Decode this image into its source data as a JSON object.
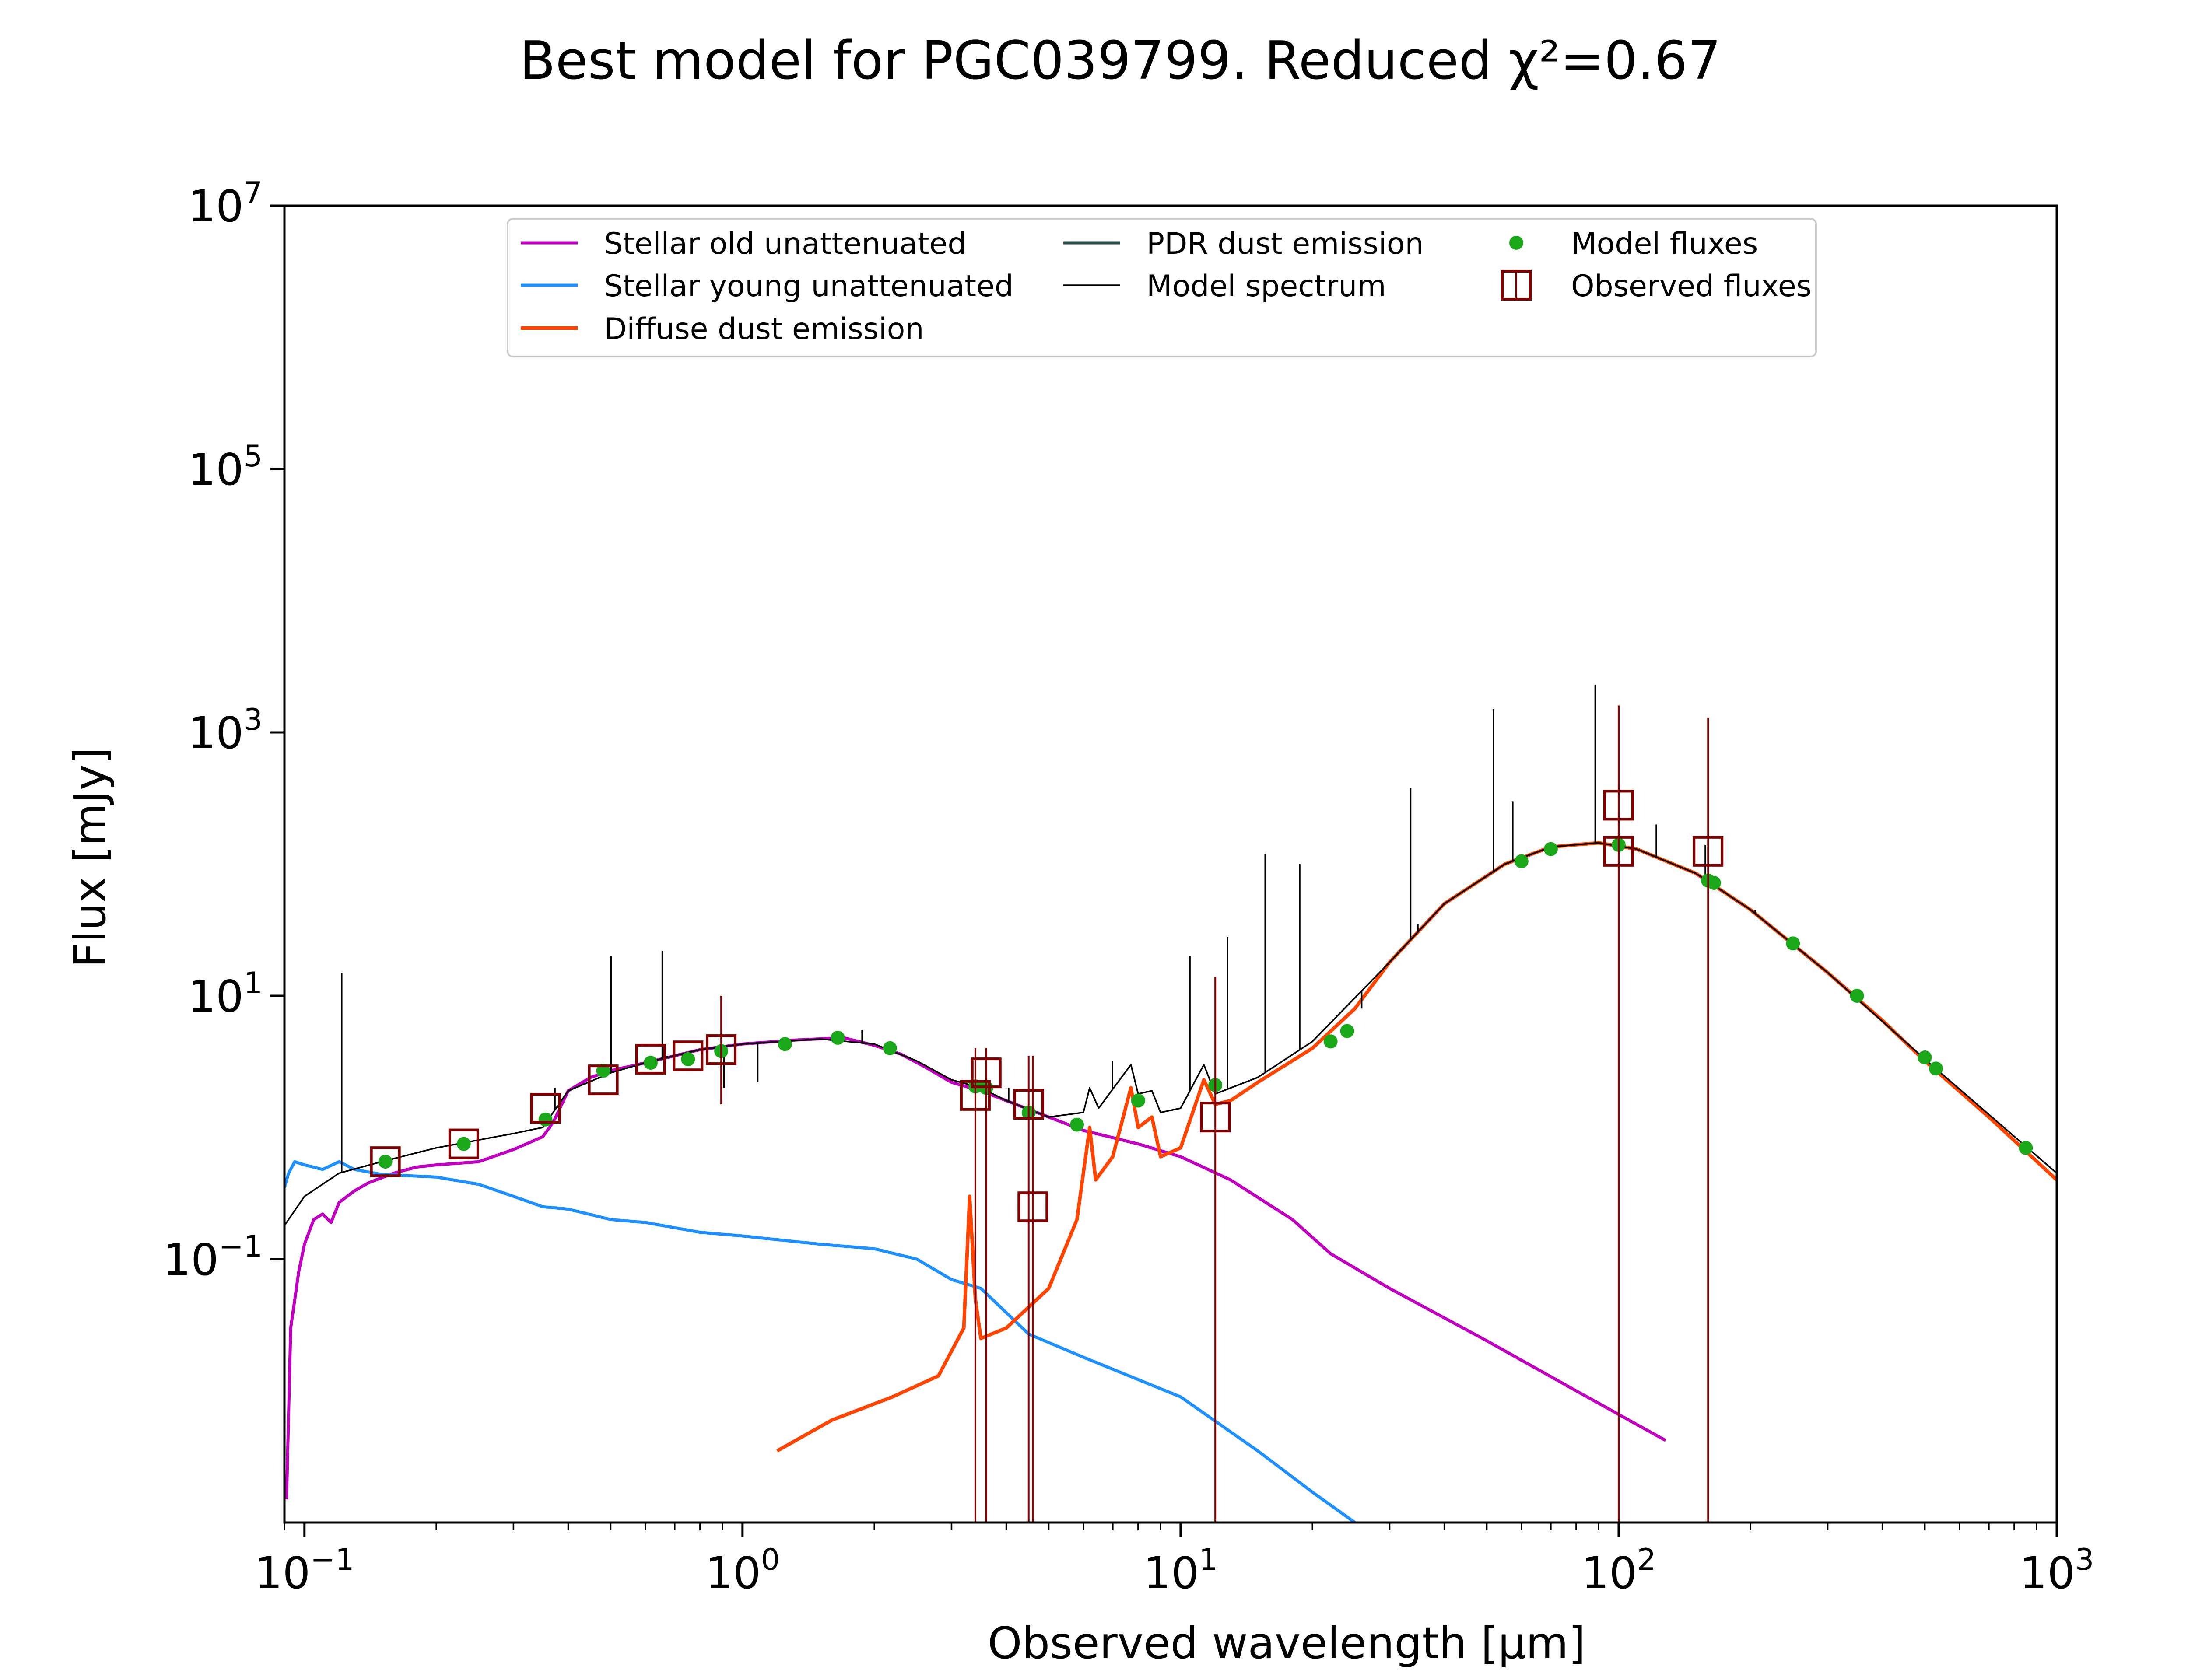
{
  "chart_data": {
    "type": "line",
    "title": "Best model for PGC039799. Reduced χ²=0.67",
    "xlabel": "Observed wavelength [μm]",
    "ylabel": "Flux [mJy]",
    "xscale": "log",
    "yscale": "log",
    "xlim": [
      0.09,
      1000
    ],
    "ylim": [
      0.001,
      10000000
    ],
    "x_ticks": [
      {
        "value": 0.1,
        "base": "10",
        "exp": "−1"
      },
      {
        "value": 1,
        "base": "10",
        "exp": "0"
      },
      {
        "value": 10,
        "base": "10",
        "exp": "1"
      },
      {
        "value": 100,
        "base": "10",
        "exp": "2"
      },
      {
        "value": 1000,
        "base": "10",
        "exp": "3"
      }
    ],
    "y_ticks": [
      {
        "value": 0.1,
        "base": "10",
        "exp": "−1"
      },
      {
        "value": 10,
        "base": "10",
        "exp": "1"
      },
      {
        "value": 1000,
        "base": "10",
        "exp": "3"
      },
      {
        "value": 100000,
        "base": "10",
        "exp": "5"
      },
      {
        "value": 10000000,
        "base": "10",
        "exp": "7"
      }
    ],
    "legend_position": "top-center",
    "grid": false,
    "series": [
      {
        "name": "Stellar old unattenuated",
        "color": "#bf00bf",
        "kind": "line",
        "points": [
          [
            0.091,
            0.0015
          ],
          [
            0.093,
            0.03
          ],
          [
            0.097,
            0.08
          ],
          [
            0.1,
            0.13
          ],
          [
            0.105,
            0.2
          ],
          [
            0.11,
            0.22
          ],
          [
            0.115,
            0.19
          ],
          [
            0.12,
            0.27
          ],
          [
            0.13,
            0.33
          ],
          [
            0.14,
            0.38
          ],
          [
            0.16,
            0.45
          ],
          [
            0.18,
            0.5
          ],
          [
            0.2,
            0.52
          ],
          [
            0.25,
            0.55
          ],
          [
            0.3,
            0.68
          ],
          [
            0.35,
            0.85
          ],
          [
            0.37,
            1.1
          ],
          [
            0.4,
            1.9
          ],
          [
            0.45,
            2.4
          ],
          [
            0.5,
            2.7
          ],
          [
            0.6,
            3.1
          ],
          [
            0.7,
            3.5
          ],
          [
            0.8,
            3.9
          ],
          [
            1.0,
            4.3
          ],
          [
            1.3,
            4.6
          ],
          [
            1.7,
            4.8
          ],
          [
            2.0,
            4.2
          ],
          [
            2.3,
            3.6
          ],
          [
            2.6,
            2.9
          ],
          [
            3.0,
            2.2
          ],
          [
            3.5,
            1.9
          ],
          [
            4.0,
            1.6
          ],
          [
            5.0,
            1.2
          ],
          [
            6.0,
            0.95
          ],
          [
            8.0,
            0.75
          ],
          [
            10.0,
            0.6
          ],
          [
            13.0,
            0.4
          ],
          [
            18.0,
            0.2
          ],
          [
            22.0,
            0.11
          ],
          [
            30.0,
            0.06
          ],
          [
            50.0,
            0.024
          ],
          [
            80.0,
            0.01
          ],
          [
            128.0,
            0.0042
          ]
        ]
      },
      {
        "name": "Stellar young unattenuated",
        "color": "#1e90ff",
        "kind": "line",
        "points": [
          [
            0.09,
            0.35
          ],
          [
            0.092,
            0.45
          ],
          [
            0.095,
            0.55
          ],
          [
            0.1,
            0.52
          ],
          [
            0.11,
            0.48
          ],
          [
            0.12,
            0.55
          ],
          [
            0.13,
            0.48
          ],
          [
            0.15,
            0.44
          ],
          [
            0.2,
            0.42
          ],
          [
            0.25,
            0.37
          ],
          [
            0.3,
            0.3
          ],
          [
            0.35,
            0.25
          ],
          [
            0.4,
            0.24
          ],
          [
            0.5,
            0.2
          ],
          [
            0.6,
            0.19
          ],
          [
            0.8,
            0.16
          ],
          [
            1.0,
            0.15
          ],
          [
            1.5,
            0.13
          ],
          [
            2.0,
            0.12
          ],
          [
            2.5,
            0.1
          ],
          [
            3.0,
            0.07
          ],
          [
            3.5,
            0.06
          ],
          [
            4.5,
            0.027
          ],
          [
            6.0,
            0.018
          ],
          [
            10.0,
            0.009
          ],
          [
            15.0,
            0.0035
          ],
          [
            20.0,
            0.0017
          ],
          [
            25.0,
            0.001
          ]
        ]
      },
      {
        "name": "Diffuse dust emission",
        "color": "#ff4500",
        "kind": "line",
        "points": [
          [
            1.2,
            0.0035
          ],
          [
            1.6,
            0.006
          ],
          [
            2.2,
            0.009
          ],
          [
            2.8,
            0.013
          ],
          [
            3.2,
            0.03
          ],
          [
            3.3,
            0.3
          ],
          [
            3.4,
            0.05
          ],
          [
            3.5,
            0.025
          ],
          [
            4.0,
            0.03
          ],
          [
            5.0,
            0.06
          ],
          [
            5.8,
            0.2
          ],
          [
            6.2,
            1.0
          ],
          [
            6.4,
            0.4
          ],
          [
            7.0,
            0.6
          ],
          [
            7.7,
            2.0
          ],
          [
            8.0,
            1.0
          ],
          [
            8.6,
            1.2
          ],
          [
            9.0,
            0.6
          ],
          [
            10.0,
            0.7
          ],
          [
            11.3,
            2.3
          ],
          [
            12.0,
            1.5
          ],
          [
            13.0,
            1.6
          ],
          [
            15.0,
            2.2
          ],
          [
            20.0,
            4.0
          ],
          [
            25.0,
            8.0
          ],
          [
            30.0,
            18.0
          ],
          [
            40.0,
            50.0
          ],
          [
            55.0,
            100.0
          ],
          [
            70.0,
            135.0
          ],
          [
            90.0,
            145.0
          ],
          [
            110.0,
            130.0
          ],
          [
            150.0,
            85.0
          ],
          [
            200.0,
            45.0
          ],
          [
            300.0,
            15.0
          ],
          [
            400.0,
            6.5
          ],
          [
            500.0,
            3.2
          ],
          [
            700.0,
            1.2
          ],
          [
            1000.0,
            0.4
          ]
        ]
      },
      {
        "name": "PDR dust emission",
        "color": "#2f4f4f",
        "kind": "line",
        "points": []
      },
      {
        "name": "Model spectrum",
        "color": "#000000",
        "kind": "line",
        "points": [
          [
            0.09,
            0.18
          ],
          [
            0.1,
            0.3
          ],
          [
            0.12,
            0.45
          ],
          [
            0.15,
            0.55
          ],
          [
            0.2,
            0.7
          ],
          [
            0.3,
            0.9
          ],
          [
            0.35,
            1.0
          ],
          [
            0.4,
            1.9
          ],
          [
            0.5,
            2.6
          ],
          [
            0.6,
            3.1
          ],
          [
            0.8,
            3.9
          ],
          [
            1.0,
            4.3
          ],
          [
            1.5,
            4.7
          ],
          [
            2.0,
            4.3
          ],
          [
            2.5,
            3.2
          ],
          [
            3.0,
            2.3
          ],
          [
            3.5,
            2.0
          ],
          [
            4.0,
            1.6
          ],
          [
            5.0,
            1.2
          ],
          [
            6.0,
            1.3
          ],
          [
            6.2,
            2.0
          ],
          [
            6.5,
            1.4
          ],
          [
            7.7,
            3.0
          ],
          [
            8.0,
            1.8
          ],
          [
            8.6,
            1.9
          ],
          [
            9.0,
            1.3
          ],
          [
            10.0,
            1.4
          ],
          [
            11.3,
            3.0
          ],
          [
            12.0,
            1.8
          ],
          [
            15.0,
            2.4
          ],
          [
            20.0,
            4.5
          ],
          [
            30.0,
            18.0
          ],
          [
            40.0,
            50.0
          ],
          [
            55.0,
            100.0
          ],
          [
            70.0,
            135.0
          ],
          [
            90.0,
            145.0
          ],
          [
            110.0,
            130.0
          ],
          [
            150.0,
            85.0
          ],
          [
            200.0,
            45.0
          ],
          [
            300.0,
            15.0
          ],
          [
            500.0,
            3.3
          ],
          [
            1000.0,
            0.45
          ]
        ],
        "lines": [
          [
            0.1216,
            15.0
          ],
          [
            0.373,
            2.0
          ],
          [
            0.486,
            2.5
          ],
          [
            0.501,
            20.0
          ],
          [
            0.656,
            22.0
          ],
          [
            0.673,
            3.5
          ],
          [
            0.907,
            2.0
          ],
          [
            1.083,
            2.2
          ],
          [
            1.875,
            5.5
          ],
          [
            4.05,
            2.0
          ],
          [
            6.99,
            3.2
          ],
          [
            10.5,
            20.0
          ],
          [
            12.8,
            28.0
          ],
          [
            15.6,
            120.0
          ],
          [
            18.7,
            100.0
          ],
          [
            25.9,
            8.0
          ],
          [
            33.5,
            380.0
          ],
          [
            34.8,
            35.0
          ],
          [
            51.8,
            1500.0
          ],
          [
            57.3,
            300.0
          ],
          [
            88.4,
            2300.0
          ],
          [
            121.9,
            200.0
          ],
          [
            157.7,
            140.0
          ],
          [
            205.0,
            45.0
          ]
        ]
      },
      {
        "name": "Model fluxes",
        "color": "#1aa81a",
        "kind": "points",
        "points": [
          [
            0.153,
            0.55
          ],
          [
            0.231,
            0.75
          ],
          [
            0.355,
            1.15
          ],
          [
            0.481,
            2.7
          ],
          [
            0.617,
            3.1
          ],
          [
            0.751,
            3.3
          ],
          [
            0.894,
            3.8
          ],
          [
            1.25,
            4.3
          ],
          [
            1.65,
            4.8
          ],
          [
            2.17,
            4.0
          ],
          [
            3.4,
            2.05
          ],
          [
            3.6,
            2.0
          ],
          [
            4.5,
            1.3
          ],
          [
            5.8,
            1.05
          ],
          [
            8.0,
            1.6
          ],
          [
            12.0,
            2.1
          ],
          [
            22.0,
            4.5
          ],
          [
            24.0,
            5.4
          ],
          [
            60.0,
            105.0
          ],
          [
            70.0,
            130.0
          ],
          [
            100.0,
            140.0
          ],
          [
            160.0,
            75.0
          ],
          [
            165.0,
            72.0
          ],
          [
            250.0,
            25.0
          ],
          [
            350.0,
            10.0
          ],
          [
            500.0,
            3.4
          ],
          [
            530.0,
            2.8
          ],
          [
            850.0,
            0.7
          ]
        ]
      },
      {
        "name": "Observed fluxes",
        "color": "#800000",
        "kind": "squares",
        "points": [
          [
            0.153,
            0.55
          ],
          [
            0.231,
            0.75
          ],
          [
            0.355,
            1.4
          ],
          [
            0.481,
            2.3
          ],
          [
            0.617,
            3.3
          ],
          [
            0.751,
            3.5
          ],
          [
            0.894,
            3.9
          ],
          [
            3.4,
            1.75
          ],
          [
            3.6,
            2.6
          ],
          [
            4.5,
            1.5
          ],
          [
            4.6,
            0.25
          ],
          [
            12.0,
            1.2
          ],
          [
            100.0,
            280.0
          ],
          [
            100.0,
            125.0
          ],
          [
            160.0,
            125.0
          ]
        ],
        "error_bars": [
          [
            0.894,
            3.9,
            1.5,
            10.0
          ],
          [
            3.4,
            1.75,
            0.001,
            4.0
          ],
          [
            3.6,
            2.6,
            0.001,
            4.0
          ],
          [
            4.5,
            1.5,
            0.001,
            3.5
          ],
          [
            4.6,
            0.25,
            0.001,
            3.5
          ],
          [
            12.0,
            1.2,
            0.001,
            14.0
          ],
          [
            100.0,
            280.0,
            0.001,
            1600.0
          ],
          [
            100.0,
            125.0,
            0.001,
            1600.0
          ],
          [
            160.0,
            125.0,
            0.001,
            1300.0
          ]
        ]
      }
    ]
  }
}
